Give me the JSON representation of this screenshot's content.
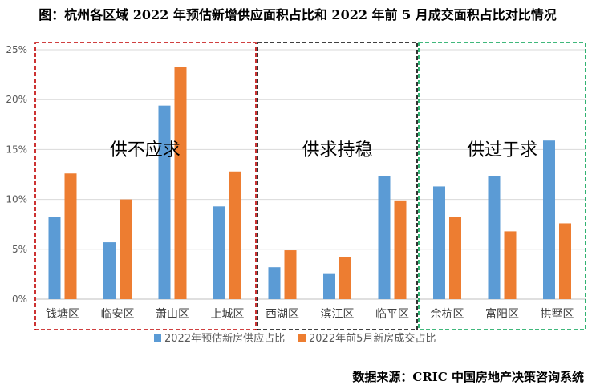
{
  "chart_data": {
    "type": "bar",
    "title": "图：杭州各区域 2022 年预估新增供应面积占比和 2022 年前 5 月成交面积占比对比情况",
    "categories": [
      "钱塘区",
      "临安区",
      "萧山区",
      "上城区",
      "西湖区",
      "滨江区",
      "临平区",
      "余杭区",
      "富阳区",
      "拱墅区"
    ],
    "series": [
      {
        "name": "2022年预估新房供应占比",
        "values": [
          8.2,
          5.7,
          19.4,
          9.3,
          3.2,
          2.6,
          12.3,
          11.3,
          12.3,
          15.9
        ]
      },
      {
        "name": "2022年前5月新房成交占比",
        "values": [
          12.6,
          10.0,
          23.3,
          12.8,
          4.9,
          4.2,
          9.9,
          8.2,
          6.8,
          7.6
        ]
      }
    ],
    "ylim": [
      0,
      25
    ],
    "yticks": [
      "0%",
      "5%",
      "10%",
      "15%",
      "20%",
      "25%"
    ],
    "ytick_values": [
      0,
      5,
      10,
      15,
      20,
      25
    ],
    "groups": [
      {
        "label": "供不应求",
        "start": 0,
        "end": 3,
        "color": "#c00000"
      },
      {
        "label": "供求持稳",
        "start": 4,
        "end": 6,
        "color": "#000000"
      },
      {
        "label": "供过于求",
        "start": 7,
        "end": 9,
        "color": "#00a050"
      }
    ],
    "colors": {
      "series_1": "#5b9bd5",
      "series_2": "#ed7d31"
    },
    "legend_position": "bottom"
  },
  "source": "数据来源：CRIC 中国房地产决策咨询系统"
}
